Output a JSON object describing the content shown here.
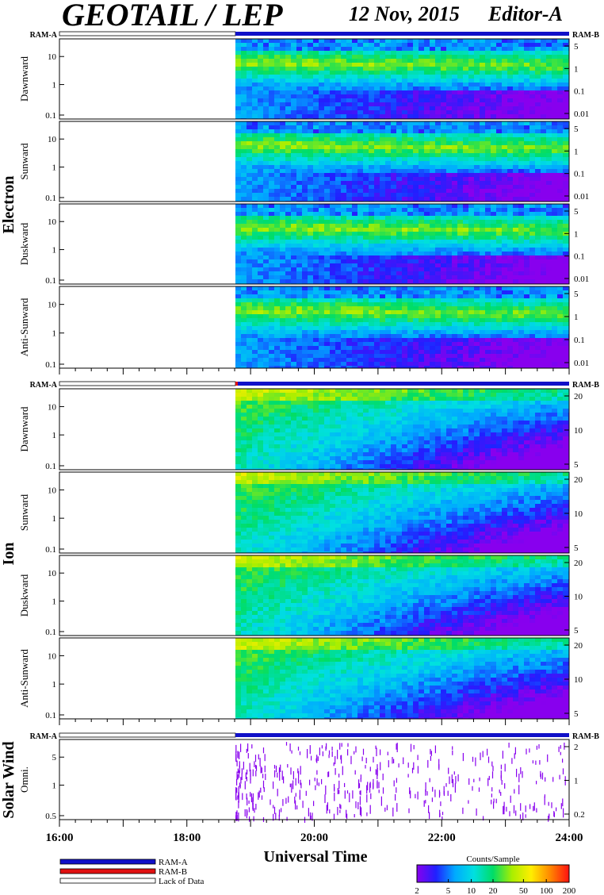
{
  "header": {
    "title": "GEOTAIL / LEP",
    "date": "12 Nov, 2015",
    "editor": "Editor-A"
  },
  "chart_data": {
    "type": "heatmap",
    "x_axis": {
      "label": "Universal Time",
      "range": [
        "16:00",
        "24:00"
      ],
      "ticks": [
        "16:00",
        "18:00",
        "20:00",
        "22:00",
        "24:00"
      ]
    },
    "data_start": "18:45",
    "groups": [
      {
        "label": "Electron",
        "ram_left": "RAM-A",
        "ram_right": "RAM-B",
        "panels": [
          {
            "label": "Dawnward",
            "left_ticks": [
              "10",
              "1",
              "0.1"
            ],
            "right_ticks": [
              "5",
              "1",
              "0.1",
              "0.01"
            ]
          },
          {
            "label": "Sunward",
            "left_ticks": [
              "10",
              "1",
              "0.1"
            ],
            "right_ticks": [
              "5",
              "1",
              "0.1",
              "0.01"
            ]
          },
          {
            "label": "Duskward",
            "left_ticks": [
              "10",
              "1",
              "0.1"
            ],
            "right_ticks": [
              "5",
              "1",
              "0.1",
              "0.01"
            ]
          },
          {
            "label": "Anti-Sunward",
            "left_ticks": [
              "10",
              "1",
              "0.1"
            ],
            "right_ticks": [
              "5",
              "1",
              "0.1",
              "0.01"
            ]
          }
        ]
      },
      {
        "label": "Ion",
        "ram_left": "RAM-A",
        "ram_right": "RAM-B",
        "panels": [
          {
            "label": "Dawnward",
            "left_ticks": [
              "10",
              "1",
              "0.1"
            ],
            "right_ticks": [
              "20",
              "10",
              "5"
            ]
          },
          {
            "label": "Sunward",
            "left_ticks": [
              "10",
              "1",
              "0.1"
            ],
            "right_ticks": [
              "20",
              "10",
              "5"
            ]
          },
          {
            "label": "Duskward",
            "left_ticks": [
              "10",
              "1",
              "0.1"
            ],
            "right_ticks": [
              "20",
              "10",
              "5"
            ]
          },
          {
            "label": "Anti-Sunward",
            "left_ticks": [
              "10",
              "1",
              "0.1"
            ],
            "right_ticks": [
              "20",
              "10",
              "5"
            ]
          }
        ]
      },
      {
        "label": "Solar Wind",
        "ram_left": "RAM-A",
        "ram_right": "RAM-B",
        "panels": [
          {
            "label": "Omni.",
            "left_ticks": [
              "5",
              "1",
              "0.5"
            ],
            "right_ticks": [
              "2",
              "1",
              "0.2"
            ]
          }
        ]
      }
    ],
    "legend": [
      {
        "label": "RAM-A",
        "color": "#1010c8"
      },
      {
        "label": "RAM-B",
        "color": "#e01010"
      },
      {
        "label": "Lack of Data",
        "color": "#ffffff"
      }
    ],
    "colorbar": {
      "title": "Counts/Sample",
      "ticks": [
        "2",
        "5",
        "10",
        "20",
        "50",
        "100",
        "200"
      ],
      "colors": [
        "#8800ee",
        "#2020ff",
        "#00aaff",
        "#00e0e0",
        "#00dd66",
        "#aaee00",
        "#ffee00",
        "#ff8800",
        "#ff1010"
      ]
    }
  }
}
